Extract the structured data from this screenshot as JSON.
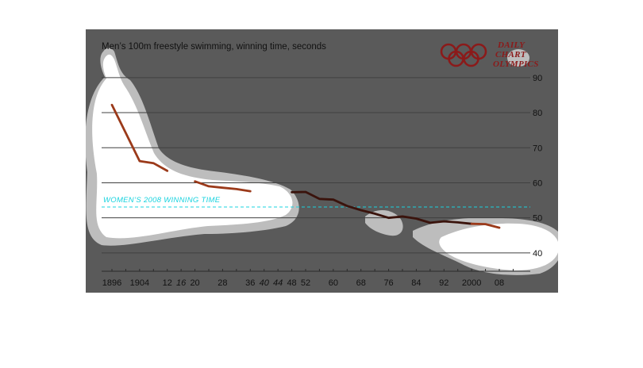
{
  "brand": {
    "line1": "DAILY",
    "line2": "CHART",
    "line3": "OLYMPICS",
    "color": "#8b1a1a"
  },
  "chart_data": {
    "type": "line",
    "title": "Men’s 100m freestyle swimming, winning time, seconds",
    "xlabel": "",
    "ylabel": "",
    "ylim": [
      35,
      92
    ],
    "xlim": [
      1894,
      2013
    ],
    "y_ticks": [
      40,
      50,
      60,
      70,
      80,
      90
    ],
    "x_tick_labels": [
      {
        "year": 1896,
        "label": "1896",
        "held": true
      },
      {
        "year": 1904,
        "label": "1904",
        "held": true
      },
      {
        "year": 1912,
        "label": "12",
        "held": true
      },
      {
        "year": 1916,
        "label": "16",
        "held": false
      },
      {
        "year": 1920,
        "label": "20",
        "held": true
      },
      {
        "year": 1928,
        "label": "28",
        "held": true
      },
      {
        "year": 1936,
        "label": "36",
        "held": true
      },
      {
        "year": 1940,
        "label": "40",
        "held": false
      },
      {
        "year": 1944,
        "label": "44",
        "held": false
      },
      {
        "year": 1948,
        "label": "48",
        "held": true
      },
      {
        "year": 1952,
        "label": "52",
        "held": true
      },
      {
        "year": 1960,
        "label": "60",
        "held": true
      },
      {
        "year": 1968,
        "label": "68",
        "held": true
      },
      {
        "year": 1976,
        "label": "76",
        "held": true
      },
      {
        "year": 1984,
        "label": "84",
        "held": true
      },
      {
        "year": 1992,
        "label": "92",
        "held": true
      },
      {
        "year": 2000,
        "label": "2000",
        "held": true
      },
      {
        "year": 2008,
        "label": "08",
        "held": true
      }
    ],
    "grid": true,
    "reference_line": {
      "label": "WOMEN’S 2008 WINNING TIME",
      "value": 53.1,
      "color": "#19d3df"
    },
    "series": [
      {
        "color": "#9b3a1a",
        "points": [
          [
            1896,
            82.2
          ],
          [
            1904,
            66.2
          ],
          [
            1908,
            65.6
          ],
          [
            1912,
            63.4
          ]
        ]
      },
      {
        "color": "#9b3a1a",
        "points": [
          [
            1920,
            60.4
          ],
          [
            1924,
            59.0
          ],
          [
            1928,
            58.6
          ],
          [
            1932,
            58.2
          ],
          [
            1936,
            57.6
          ]
        ]
      },
      {
        "color": "#3a130c",
        "points": [
          [
            1948,
            57.3
          ],
          [
            1952,
            57.4
          ],
          [
            1956,
            55.4
          ],
          [
            1960,
            55.2
          ],
          [
            1964,
            53.4
          ],
          [
            1968,
            52.2
          ],
          [
            1972,
            51.2
          ],
          [
            1976,
            50.0
          ],
          [
            1980,
            50.4
          ],
          [
            1984,
            49.8
          ],
          [
            1988,
            48.6
          ],
          [
            1992,
            49.0
          ],
          [
            1996,
            48.7
          ],
          [
            2000,
            48.3
          ]
        ]
      },
      {
        "color": "#9b3a1a",
        "points": [
          [
            2000,
            48.3
          ],
          [
            2004,
            48.2
          ],
          [
            2008,
            47.2
          ]
        ]
      }
    ],
    "colors": {
      "panel": "#5a5a5a",
      "halo_outer": "#bdbdbd",
      "halo_inner": "#ffffff",
      "grid": "#404040",
      "axis": "#2a2a2a"
    }
  }
}
